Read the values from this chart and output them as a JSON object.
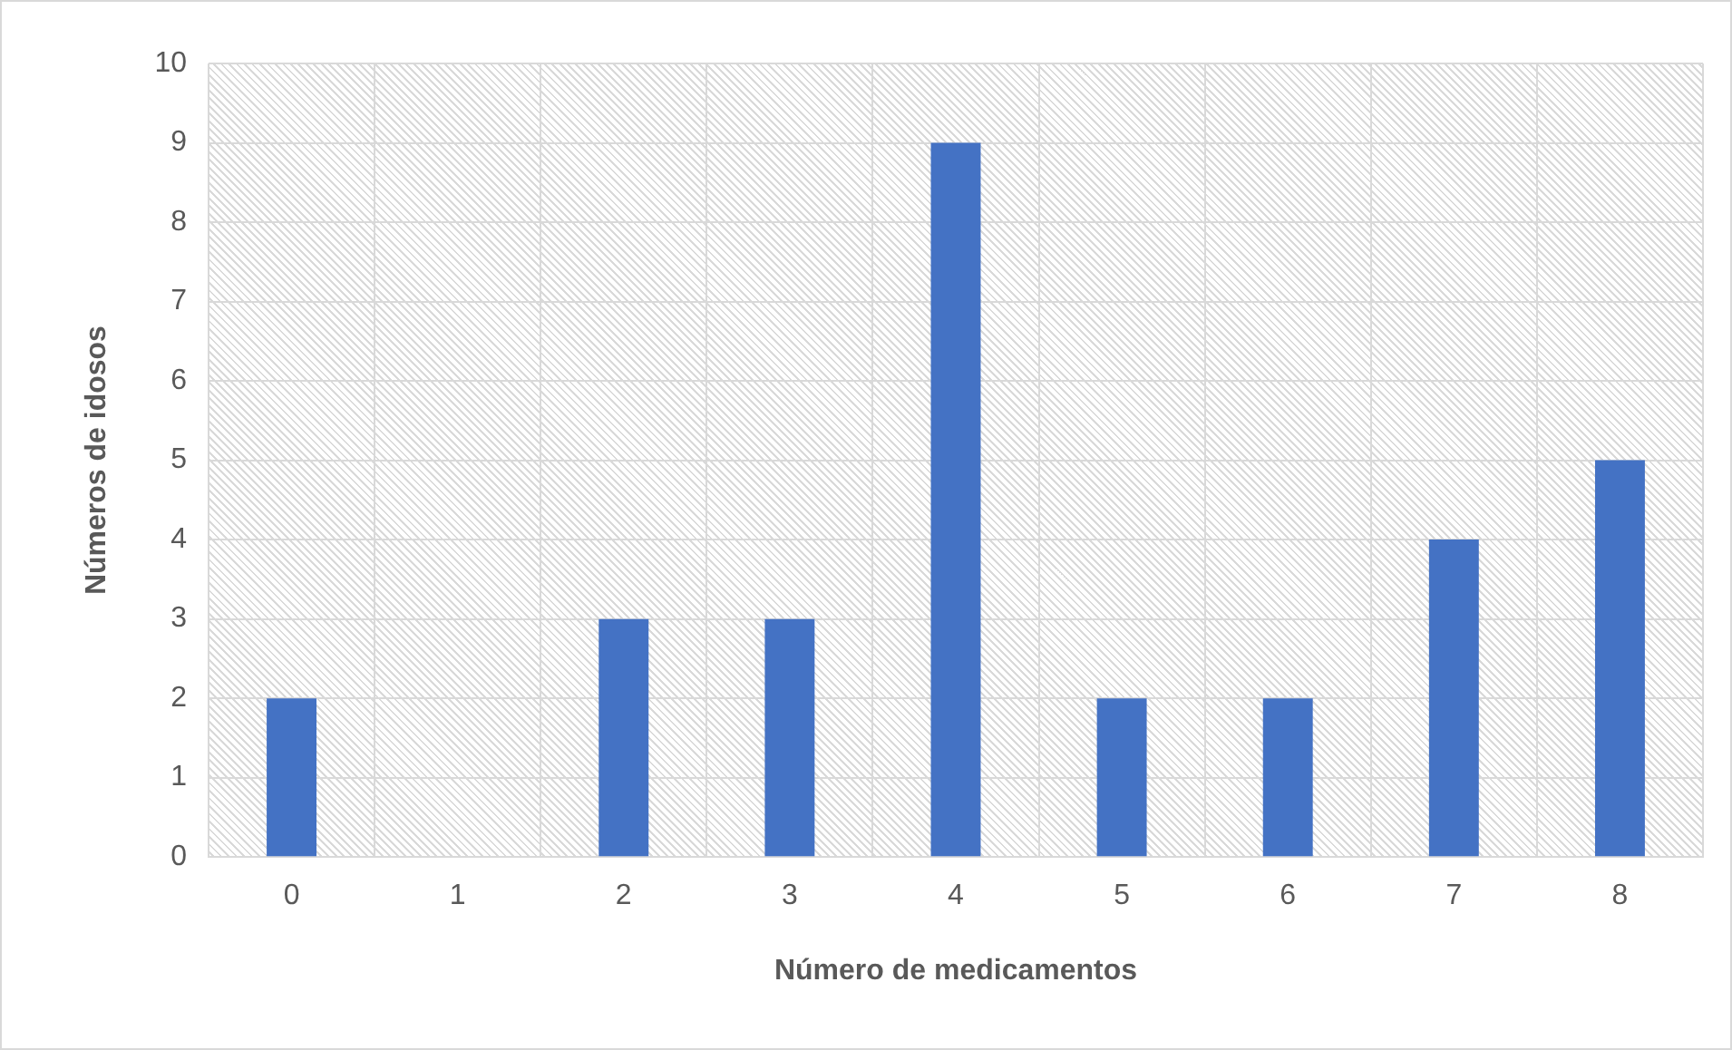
{
  "chart_data": {
    "type": "bar",
    "xlabel": "Número de medicamentos",
    "ylabel": "Números de idosos",
    "categories": [
      "0",
      "1",
      "2",
      "3",
      "4",
      "5",
      "6",
      "7",
      "8"
    ],
    "values": [
      2,
      0,
      3,
      3,
      9,
      2,
      2,
      4,
      5
    ],
    "color": "#4472c4",
    "ylim": [
      0,
      10
    ],
    "yticks": [
      0,
      1,
      2,
      3,
      4,
      5,
      6,
      7,
      8,
      9,
      10
    ],
    "grid": true,
    "legend": false
  }
}
